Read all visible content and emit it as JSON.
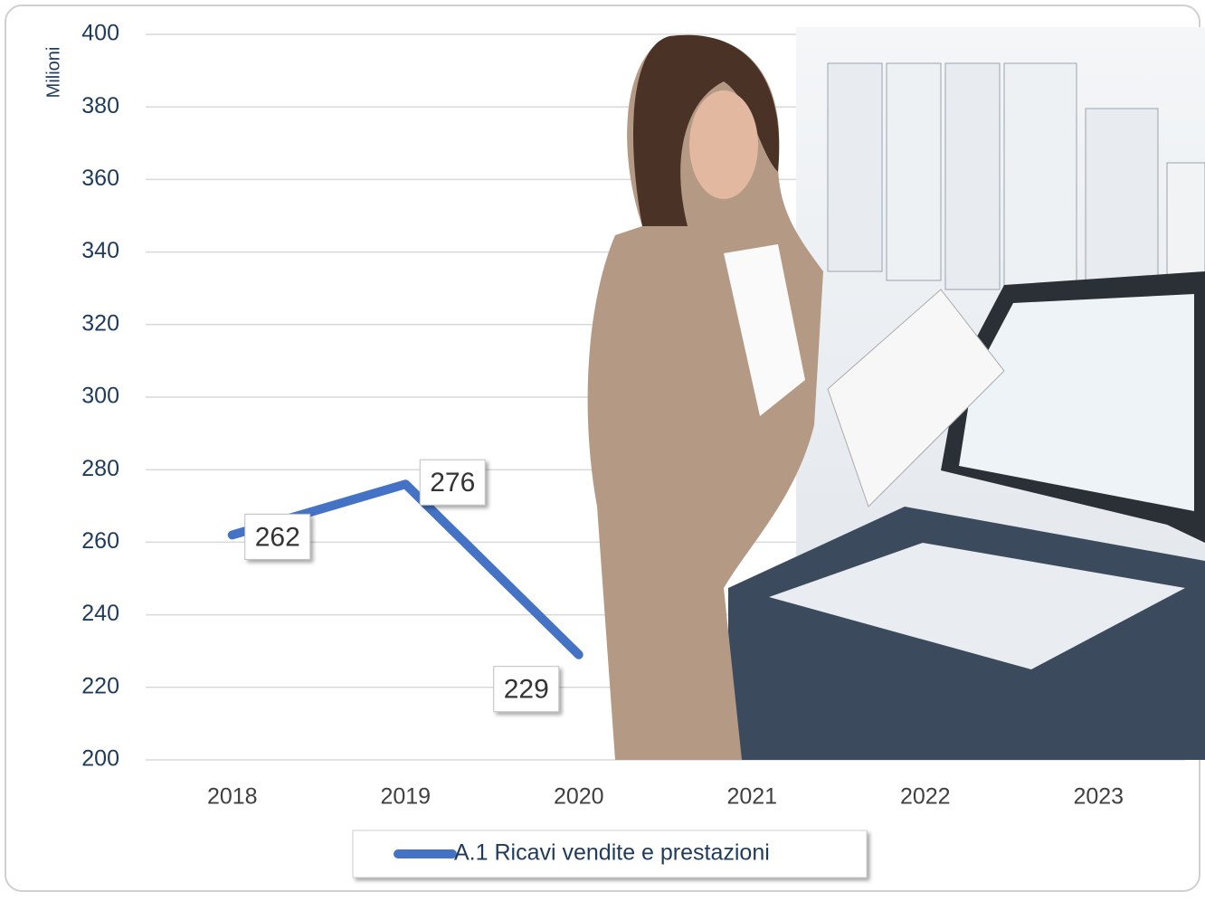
{
  "chart_data": {
    "type": "line",
    "axis_title": "Milioni",
    "categories": [
      "2018",
      "2019",
      "2020",
      "2021",
      "2022",
      "2023"
    ],
    "series": [
      {
        "name": "A.1 Ricavi vendite e prestazioni",
        "color": "#4472c4",
        "values": [
          262,
          276,
          229,
          null,
          null,
          null
        ]
      }
    ],
    "ylim": [
      200,
      400
    ],
    "yticks": [
      200,
      220,
      240,
      260,
      280,
      300,
      320,
      340,
      360,
      380,
      400
    ],
    "grid": true,
    "legend": "bottom"
  }
}
